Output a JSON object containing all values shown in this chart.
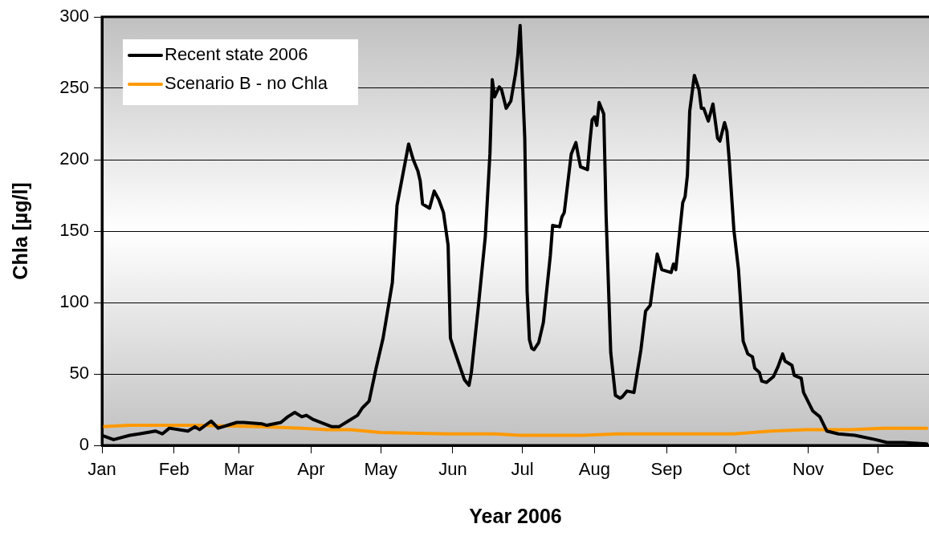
{
  "chart_data": {
    "type": "line",
    "xlabel": "Year 2006",
    "ylabel": "Chla [µg/l]",
    "xlim": [
      "--01-01",
      "--12-23"
    ],
    "xticks": [
      {
        "value": "--01-01",
        "label": "Jan"
      },
      {
        "value": "--02-01",
        "label": "Feb"
      },
      {
        "value": "--03-01",
        "label": "Mar"
      },
      {
        "value": "--04-01",
        "label": "Apr"
      },
      {
        "value": "--05-01",
        "label": "May"
      },
      {
        "value": "--06-01",
        "label": "Jun"
      },
      {
        "value": "--07-01",
        "label": "Jul"
      },
      {
        "value": "--08-01",
        "label": "Aug"
      },
      {
        "value": "--09-01",
        "label": "Sep"
      },
      {
        "value": "--10-01",
        "label": "Oct"
      },
      {
        "value": "--11-01",
        "label": "Nov"
      },
      {
        "value": "--12-01",
        "label": "Dec"
      }
    ],
    "ylim": [
      0,
      300
    ],
    "yticks": [
      0,
      50,
      100,
      150,
      200,
      250,
      300
    ],
    "grid": "y",
    "legend": "top left",
    "marker": "none",
    "line_style": "solid",
    "series": [
      {
        "name": "Recent state 2006",
        "color": "#000000",
        "x": [
          "--01-01",
          "--01-06",
          "--01-13",
          "--01-17",
          "--01-24",
          "--01-27",
          "--01-30",
          "--02-07",
          "--02-10",
          "--02-12",
          "--02-17",
          "--02-20",
          "--02-28",
          "--03-03",
          "--03-11",
          "--03-13",
          "--03-19",
          "--03-22",
          "--03-25",
          "--03-28",
          "--03-30",
          "--04-02",
          "--04-10",
          "--04-13",
          "--04-17",
          "--04-21",
          "--04-23",
          "--04-26",
          "--04-29",
          "--05-02",
          "--05-06",
          "--05-08",
          "--05-13",
          "--05-15",
          "--05-17",
          "--05-18",
          "--05-19",
          "--05-22",
          "--05-24",
          "--05-26",
          "--05-28",
          "--05-30",
          "--05-31",
          "--06-02",
          "--06-06",
          "--06-08",
          "--06-09",
          "--06-12",
          "--06-15",
          "--06-17",
          "--06-18",
          "--06-19",
          "--06-21",
          "--06-22",
          "--06-24",
          "--06-26",
          "--06-28",
          "--06-29",
          "--06-30",
          "--07-02",
          "--07-03",
          "--07-04",
          "--07-05",
          "--07-06",
          "--07-08",
          "--07-10",
          "--07-13",
          "--07-14",
          "--07-17",
          "--07-18",
          "--07-19",
          "--07-22",
          "--07-24",
          "--07-25",
          "--07-26",
          "--07-29",
          "--07-30",
          "--07-31",
          "--08-01",
          "--08-02",
          "--08-03",
          "--08-05",
          "--08-06",
          "--08-08",
          "--08-10",
          "--08-12",
          "--08-13",
          "--08-15",
          "--08-18",
          "--08-21",
          "--08-23",
          "--08-25",
          "--08-28",
          "--08-30",
          "--09-03",
          "--09-04",
          "--09-05",
          "--09-08",
          "--09-09",
          "--09-10",
          "--09-11",
          "--09-13",
          "--09-15",
          "--09-16",
          "--09-17",
          "--09-19",
          "--09-21",
          "--09-23",
          "--09-24",
          "--09-26",
          "--09-27",
          "--09-28",
          "--09-30",
          "--10-02",
          "--10-04",
          "--10-06",
          "--10-08",
          "--10-09",
          "--10-11",
          "--10-12",
          "--10-14",
          "--10-17",
          "--10-19",
          "--10-21",
          "--10-22",
          "--10-25",
          "--10-26",
          "--10-29",
          "--10-30",
          "--11-03",
          "--11-06",
          "--11-09",
          "--11-14",
          "--11-21",
          "--11-24",
          "--11-30",
          "--12-05",
          "--12-12",
          "--12-22"
        ],
        "values": [
          7,
          4,
          7,
          8,
          10,
          8,
          12,
          10,
          13,
          11,
          17,
          12,
          16,
          16,
          15,
          14,
          16,
          20,
          23,
          20,
          21,
          18,
          13,
          13,
          17,
          21,
          26,
          31,
          54,
          75,
          114,
          168,
          211,
          200,
          192,
          185,
          169,
          166,
          178,
          172,
          163,
          140,
          75,
          65,
          46,
          42,
          51,
          97,
          146,
          204,
          256,
          244,
          251,
          249,
          236,
          241,
          260,
          273,
          294,
          215,
          108,
          74,
          68,
          67,
          72,
          86,
          133,
          154,
          153,
          160,
          163,
          204,
          212,
          203,
          195,
          193,
          212,
          228,
          230,
          224,
          240,
          232,
          161,
          65,
          35,
          33,
          34,
          38,
          37,
          67,
          94,
          98,
          134,
          123,
          121,
          127,
          123,
          170,
          174,
          189,
          234,
          259,
          249,
          236,
          236,
          227,
          239,
          215,
          213,
          226,
          220,
          200,
          151,
          123,
          73,
          64,
          62,
          54,
          51,
          45,
          44,
          48,
          55,
          64,
          59,
          56,
          49,
          47,
          37,
          24,
          20,
          10,
          8,
          7,
          6,
          4,
          2,
          2,
          1
        ]
      },
      {
        "name": "Scenario B - no Chla",
        "color": "#ff9900",
        "x": [
          "--01-01",
          "--01-13",
          "--02-12",
          "--03-11",
          "--03-28",
          "--04-08",
          "--04-18",
          "--05-01",
          "--05-30",
          "--06-19",
          "--06-30",
          "--07-27",
          "--08-11",
          "--09-08",
          "--09-30",
          "--10-16",
          "--10-31",
          "--11-19",
          "--12-03",
          "--12-22"
        ],
        "values": [
          13,
          14,
          14,
          13,
          12,
          11,
          11,
          9,
          8,
          8,
          7,
          7,
          8,
          8,
          8,
          10,
          11,
          11,
          12,
          12
        ]
      }
    ]
  }
}
